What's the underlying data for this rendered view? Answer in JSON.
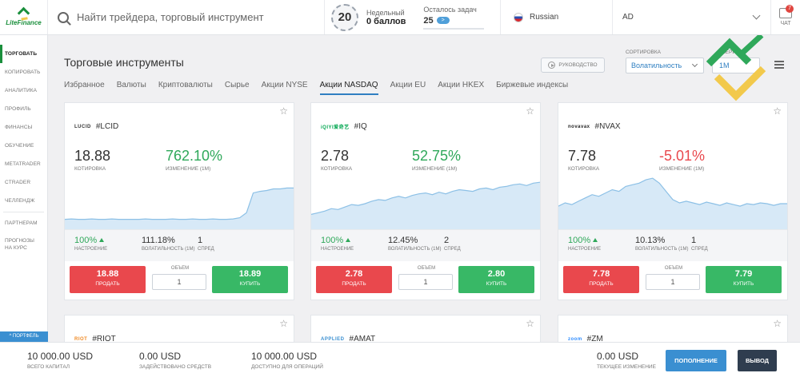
{
  "header": {
    "logo_text": "LiteFinance",
    "search_placeholder": "Найти трейдера, торговый инструмент",
    "weekly_badge": "20",
    "weekly_label": "Недельный",
    "weekly_points": "0 баллов",
    "tasks_label": "Осталось задач",
    "tasks_count": "25",
    "tasks_button": ">",
    "language": "Russian",
    "account": "AD",
    "chat_label": "ЧАТ",
    "chat_badge": "7"
  },
  "sidebar": {
    "items": [
      "ТОРГОВАТЬ",
      "КОПИРОВАТЬ",
      "АНАЛИТИКА",
      "ПРОФИЛЬ",
      "ФИНАНСЫ",
      "ОБУЧЕНИЕ",
      "METATRADER",
      "CTRADER",
      "ЧЕЛЛЕНДЖ"
    ],
    "partners": "ПАРТНЕРАМ",
    "forecasts": "ПРОГНОЗЫ НА КУРС",
    "portfolio": "^ ПОРТФЕЛЬ"
  },
  "main": {
    "title": "Торговые инструменты",
    "guide_button": "РУКОВОДСТВО",
    "sort_label": "СОРТИРОВКА",
    "sort_value": "Волатильность",
    "period_label": "ПЕРИОД",
    "period_value": "1M",
    "tabs": [
      "Избранное",
      "Валюты",
      "Криптовалюты",
      "Сырье",
      "Акции NYSE",
      "Акции NASDAQ",
      "Акции EU",
      "Акции HKEX",
      "Биржевые индексы"
    ],
    "active_tab": "Акции NASDAQ"
  },
  "labels": {
    "quote": "КОТИРОВКА",
    "change": "ИЗМЕНЕНИЕ (1М)",
    "sentiment": "НАСТРОЕНИЕ",
    "volatility": "ВОЛАТИЛЬНОСТЬ (1М)",
    "spread": "СПРЕД",
    "volume": "ОБЪЕМ",
    "sell": "ПРОДАТЬ",
    "buy": "КУПИТЬ"
  },
  "cards": [
    {
      "logo": "LUCID",
      "logo_color": "#333333",
      "ticker": "#LCID",
      "price": "18.88",
      "change": "762.10%",
      "change_color": "#2fa85a",
      "sentiment": "100%",
      "volatility": "111.18%",
      "spread": "1",
      "volume": "1",
      "sell": "18.88",
      "buy": "18.89",
      "spark": [
        12,
        12.5,
        12,
        12,
        12.5,
        12,
        12,
        12.5,
        12,
        12,
        12,
        12,
        12.5,
        12,
        12,
        12,
        12.5,
        12,
        12,
        12.5,
        12,
        12,
        12.5,
        12,
        12,
        12.5,
        14,
        20,
        44,
        46,
        47,
        49,
        49,
        50,
        50
      ]
    },
    {
      "logo": "iQIYI爱奇艺",
      "logo_color": "#00a64f",
      "ticker": "#IQ",
      "price": "2.78",
      "change": "52.75%",
      "change_color": "#2fa85a",
      "sentiment": "100%",
      "volatility": "12.45%",
      "spread": "2",
      "volume": "1",
      "sell": "2.78",
      "buy": "2.80",
      "spark": [
        18,
        20,
        22,
        25,
        24,
        27,
        30,
        29,
        31,
        34,
        36,
        35,
        38,
        40,
        38,
        41,
        43,
        44,
        42,
        45,
        43,
        46,
        48,
        47,
        46,
        49,
        50,
        48,
        51,
        52,
        54,
        55,
        53,
        56,
        57
      ]
    },
    {
      "logo": "novavax",
      "logo_color": "#222222",
      "ticker": "#NVAX",
      "price": "7.78",
      "change": "-5.01%",
      "change_color": "#e9484d",
      "sentiment": "100%",
      "volatility": "10.13%",
      "spread": "1",
      "volume": "1",
      "sell": "7.78",
      "buy": "7.79",
      "spark": [
        28,
        32,
        30,
        34,
        38,
        42,
        40,
        44,
        48,
        46,
        52,
        54,
        56,
        60,
        62,
        56,
        46,
        36,
        32,
        34,
        32,
        30,
        33,
        31,
        29,
        32,
        30,
        28,
        31,
        30,
        32,
        31,
        29,
        31,
        31
      ]
    }
  ],
  "partial_cards": [
    {
      "logo": "RIOT",
      "logo_color": "#f08a24",
      "ticker": "#RIOT"
    },
    {
      "logo": "APPLIED",
      "logo_color": "#3a8fd1",
      "ticker": "#AMAT"
    },
    {
      "logo": "zoom",
      "logo_color": "#2d8cff",
      "ticker": "#ZM"
    }
  ],
  "footer": {
    "total_capital": "10 000.00 USD",
    "total_capital_label": "ВСЕГО КАПИТАЛ",
    "funds_used": "0.00 USD",
    "funds_used_label": "ЗАДЕЙСТВОВАНО СРЕДСТВ",
    "available": "10 000.00 USD",
    "available_label": "ДОСТУПНО ДЛЯ ОПЕРАЦИЙ",
    "current_change": "0.00 USD",
    "current_change_label": "ТЕКУЩЕЕ ИЗМЕНЕНИЕ",
    "deposit_button": "ПОПОЛНЕНИЕ",
    "withdraw_button": "ВЫВОД"
  }
}
